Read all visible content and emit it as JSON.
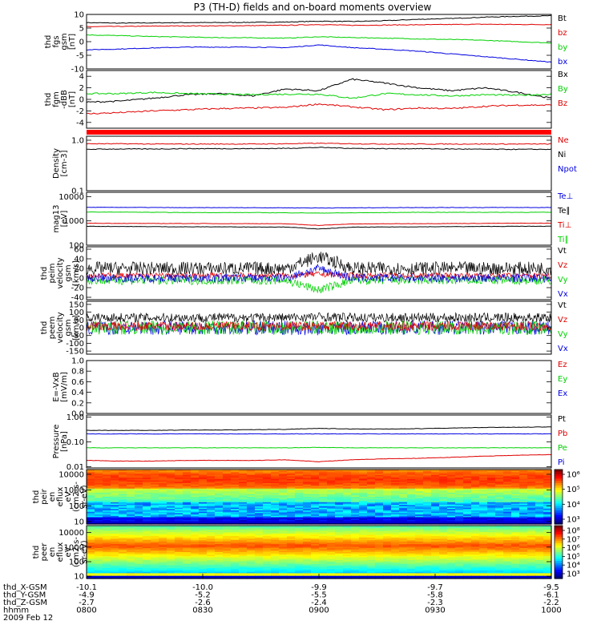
{
  "chart_data": {
    "type": "line",
    "title": "P3 (TH-D) fields and on-board moments overview",
    "colors": {
      "black": "#000000",
      "red": "#e00000",
      "green": "#00d000",
      "blue": "#0000e0"
    },
    "panels": [
      {
        "ylabel": [
          "thd",
          "fgs",
          "gsm",
          "[nT]"
        ],
        "scale": "linear",
        "ylim": [
          -10,
          10
        ],
        "ticks": [
          "10",
          "5",
          "0",
          "-5",
          "-10"
        ],
        "tickvals": [
          10,
          5,
          0,
          -5,
          -10
        ],
        "legend": [
          "Bt",
          "bz",
          "by",
          "bx"
        ],
        "series": [
          {
            "name": "Bt",
            "color": "#000000",
            "values": [
              7.0,
              6.8,
              6.9,
              7.0,
              7.0,
              7.1,
              7.2,
              7.5,
              7.4,
              7.7,
              8.2,
              8.5,
              9.0,
              9.3,
              9.5
            ]
          },
          {
            "name": "bz",
            "color": "#e00000",
            "values": [
              5.5,
              5.6,
              5.7,
              5.8,
              5.8,
              5.9,
              6.0,
              6.3,
              6.0,
              6.1,
              6.2,
              6.3,
              6.4,
              6.3,
              6.3
            ]
          },
          {
            "name": "by",
            "color": "#00d000",
            "values": [
              2.5,
              2.2,
              1.9,
              1.7,
              1.5,
              1.4,
              1.3,
              1.8,
              1.5,
              1.3,
              1.0,
              0.8,
              0.5,
              0.0,
              -0.5
            ]
          },
          {
            "name": "bx",
            "color": "#0000e0",
            "values": [
              -3.0,
              -2.7,
              -2.3,
              -2.0,
              -2.0,
              -2.0,
              -2.2,
              -1.2,
              -2.2,
              -2.8,
              -3.5,
              -4.5,
              -5.5,
              -6.5,
              -7.5
            ]
          }
        ]
      },
      {
        "ylabel": [
          "thd",
          "fgm",
          "-dBB",
          "[nT]"
        ],
        "scale": "linear",
        "ylim": [
          -5,
          5
        ],
        "ticks": [
          "4",
          "2",
          "0",
          "-2",
          "-4"
        ],
        "tickvals": [
          4,
          2,
          0,
          -2,
          -4
        ],
        "legend": [
          "Bx",
          "By",
          "Bz"
        ],
        "series": [
          {
            "name": "Bx",
            "color": "#000000",
            "values": [
              -0.5,
              -0.3,
              0.2,
              0.8,
              1.0,
              0.6,
              1.8,
              1.5,
              3.5,
              2.8,
              2.0,
              1.5,
              2.0,
              1.2,
              0.2
            ]
          },
          {
            "name": "By",
            "color": "#00d000",
            "values": [
              1.0,
              1.0,
              1.2,
              1.0,
              0.9,
              0.8,
              0.9,
              0.9,
              0.2,
              1.0,
              0.8,
              0.6,
              0.8,
              0.7,
              0.9
            ]
          },
          {
            "name": "Bz",
            "color": "#e00000",
            "values": [
              -2.5,
              -2.3,
              -2.0,
              -1.8,
              -1.6,
              -1.5,
              -1.4,
              -0.8,
              -1.3,
              -1.8,
              -1.5,
              -1.6,
              -1.2,
              -1.0,
              -1.0
            ]
          }
        ]
      },
      {
        "ylabel": [
          "Density",
          "[cm-3]"
        ],
        "scale": "log",
        "ylim": [
          0.1,
          1.2
        ],
        "ticks": [
          "1.0",
          "0.1"
        ],
        "tickvals": [
          1.0,
          0.1
        ],
        "legend": [
          "Ne",
          "Ni",
          "Npot"
        ],
        "series": [
          {
            "name": "Ne",
            "color": "#e00000",
            "values": [
              0.85,
              0.85,
              0.84,
              0.84,
              0.84,
              0.84,
              0.85,
              0.87,
              0.85,
              0.84,
              0.84,
              0.84,
              0.84,
              0.84,
              0.84
            ]
          },
          {
            "name": "Ni",
            "color": "#000000",
            "values": [
              0.66,
              0.67,
              0.67,
              0.68,
              0.68,
              0.68,
              0.69,
              0.72,
              0.69,
              0.68,
              0.68,
              0.67,
              0.66,
              0.66,
              0.66
            ]
          }
        ]
      },
      {
        "ylabel": [
          "mag13",
          "[eV]"
        ],
        "scale": "log",
        "ylim": [
          100,
          15000
        ],
        "ticks": [
          "10000",
          "1000",
          "100"
        ],
        "tickvals": [
          10000,
          1000,
          100
        ],
        "legend": [
          "Te⊥",
          "Te∥",
          "Ti⊥",
          "Ti∥"
        ],
        "series": [
          {
            "name": "Te⊥",
            "color": "#0000e0",
            "values": [
              3600,
              3600,
              3550,
              3500,
              3500,
              3500,
              3450,
              3400,
              3450,
              3500,
              3550,
              3550,
              3550,
              3550,
              3550
            ]
          },
          {
            "name": "Ti∥",
            "color": "#00d000",
            "values": [
              2300,
              2300,
              2250,
              2200,
              2200,
              2200,
              2150,
              2100,
              2150,
              2200,
              2250,
              2250,
              2250,
              2250,
              2250
            ]
          },
          {
            "name": "Ti⊥",
            "color": "#e00000",
            "values": [
              800,
              790,
              780,
              780,
              770,
              770,
              760,
              650,
              750,
              760,
              770,
              780,
              790,
              800,
              800
            ]
          },
          {
            "name": "Te∥",
            "color": "#000000",
            "values": [
              600,
              590,
              580,
              570,
              570,
              560,
              560,
              460,
              550,
              560,
              570,
              580,
              590,
              600,
              600
            ]
          }
        ]
      },
      {
        "ylabel": [
          "thd",
          "peim",
          "velocity",
          "gsm",
          "[km/s]"
        ],
        "scale": "linear",
        "ylim": [
          -45,
          65
        ],
        "ticks": [
          "60",
          "40",
          "20",
          "0",
          "-20",
          "-40"
        ],
        "tickvals": [
          60,
          40,
          20,
          0,
          -20,
          -40
        ],
        "legend": [
          "Vt",
          "Vz",
          "Vy",
          "Vx"
        ],
        "noisy": true,
        "series": [
          {
            "name": "Vt",
            "color": "#000000",
            "values": [
              20,
              20,
              20,
              20,
              20,
              20,
              20,
              45,
              20,
              20,
              20,
              20,
              20,
              20,
              20
            ],
            "noise": 14
          },
          {
            "name": "Vz",
            "color": "#e00000",
            "values": [
              5,
              5,
              5,
              5,
              5,
              5,
              5,
              8,
              5,
              5,
              5,
              5,
              5,
              5,
              5
            ],
            "noise": 6
          },
          {
            "name": "Vy",
            "color": "#00d000",
            "values": [
              -5,
              -5,
              -5,
              -5,
              -5,
              -5,
              -5,
              -25,
              -5,
              -5,
              -5,
              -5,
              -5,
              -5,
              -5
            ],
            "noise": 9
          },
          {
            "name": "Vx",
            "color": "#0000e0",
            "values": [
              0,
              0,
              0,
              0,
              0,
              0,
              0,
              20,
              0,
              0,
              0,
              0,
              0,
              0,
              0
            ],
            "noise": 9
          }
        ]
      },
      {
        "ylabel": [
          "thd",
          "peem",
          "velocity",
          "gsm",
          "[km/s]"
        ],
        "scale": "linear",
        "ylim": [
          -170,
          170
        ],
        "ticks": [
          "150",
          "100",
          "50",
          "0",
          "-50",
          "-100",
          "-150"
        ],
        "tickvals": [
          150,
          100,
          50,
          0,
          -50,
          -100,
          -150
        ],
        "legend": [
          "Vt",
          "Vz",
          "Vy",
          "Vx"
        ],
        "noisy": true,
        "series": [
          {
            "name": "Vt",
            "color": "#000000",
            "values": [
              65,
              65,
              65,
              65,
              65,
              65,
              65,
              70,
              65,
              65,
              65,
              65,
              65,
              65,
              65
            ],
            "noise": 30
          },
          {
            "name": "Vx",
            "color": "#0000e0",
            "values": [
              0,
              0,
              0,
              0,
              0,
              0,
              0,
              -10,
              0,
              0,
              0,
              0,
              0,
              0,
              0
            ],
            "noise": 45
          },
          {
            "name": "Vy",
            "color": "#00d000",
            "values": [
              0,
              0,
              0,
              0,
              0,
              0,
              0,
              0,
              0,
              0,
              0,
              0,
              0,
              0,
              0
            ],
            "noise": 45
          },
          {
            "name": "Vz",
            "color": "#e00000",
            "values": [
              10,
              10,
              10,
              10,
              10,
              10,
              10,
              10,
              10,
              10,
              10,
              10,
              10,
              10,
              10
            ],
            "noise": 30
          }
        ]
      },
      {
        "ylabel": [
          "E=-VxB",
          "[mV/m]"
        ],
        "scale": "linear",
        "ylim": [
          0,
          1
        ],
        "ticks": [
          "1.0",
          "0.8",
          "0.6",
          "0.4",
          "0.2",
          "0.0"
        ],
        "tickvals": [
          1.0,
          0.8,
          0.6,
          0.4,
          0.2,
          0.0
        ],
        "legend": [
          "Ez",
          "Ey",
          "Ex"
        ],
        "series": []
      },
      {
        "ylabel": [
          "Pressure",
          "[nPa]"
        ],
        "scale": "log",
        "ylim": [
          0.009,
          1.2
        ],
        "ticks": [
          "1.00",
          "0.10",
          "0.01"
        ],
        "tickvals": [
          1.0,
          0.1,
          0.01
        ],
        "legend": [
          "Pt",
          "Pb",
          "Pe",
          "Pi"
        ],
        "series": [
          {
            "name": "Pt",
            "color": "#000000",
            "values": [
              0.29,
              0.29,
              0.29,
              0.3,
              0.3,
              0.31,
              0.32,
              0.35,
              0.33,
              0.33,
              0.34,
              0.36,
              0.38,
              0.39,
              0.4
            ]
          },
          {
            "name": "Pi",
            "color": "#0000e0",
            "values": [
              0.21,
              0.21,
              0.21,
              0.21,
              0.21,
              0.21,
              0.21,
              0.21,
              0.21,
              0.21,
              0.21,
              0.21,
              0.21,
              0.21,
              0.21
            ]
          },
          {
            "name": "Pe",
            "color": "#00d000",
            "values": [
              0.058,
              0.058,
              0.058,
              0.058,
              0.058,
              0.058,
              0.058,
              0.06,
              0.058,
              0.058,
              0.058,
              0.058,
              0.058,
              0.058,
              0.058
            ]
          },
          {
            "name": "Pb",
            "color": "#e00000",
            "values": [
              0.018,
              0.017,
              0.017,
              0.018,
              0.018,
              0.018,
              0.019,
              0.016,
              0.019,
              0.021,
              0.022,
              0.024,
              0.027,
              0.029,
              0.031
            ]
          }
        ]
      },
      {
        "type": "heatmap",
        "ylabel": [
          "thd",
          "peir",
          "en",
          "eflux",
          "eV",
          "(cm2-s-",
          "sr-eV)"
        ],
        "scale": "log",
        "ylim": [
          7,
          20000
        ],
        "ticks": [
          "10000",
          "1000",
          "100",
          "10"
        ],
        "tickvals": [
          10000,
          1000,
          100,
          10
        ],
        "colorbar": {
          "ticks": [
            "10⁶",
            "10⁵",
            "10⁴",
            "10³"
          ],
          "range": [
            1000,
            1000000
          ]
        }
      },
      {
        "type": "heatmap",
        "ylabel": [
          "thd",
          "peer",
          "en",
          "eflux",
          "eV",
          "(cm2-s-",
          "sr-eV)"
        ],
        "scale": "log",
        "ylim": [
          7,
          30000
        ],
        "ticks": [
          "10000",
          "1000",
          "100",
          "10"
        ],
        "tickvals": [
          10000,
          1000,
          100,
          10
        ],
        "colorbar": {
          "ticks": [
            "10⁸",
            "10⁷",
            "10⁶",
            "10⁵",
            "10⁴",
            "10³"
          ],
          "range": [
            1000,
            100000000
          ]
        }
      }
    ],
    "xaxis": {
      "rows": [
        {
          "label": "thd_X-GSM",
          "values": [
            "-10.1",
            "-10.0",
            "-9.9",
            "-9.7",
            "-9.5"
          ]
        },
        {
          "label": "thd_Y-GSM",
          "values": [
            "-4.9",
            "-5.2",
            "-5.5",
            "-5.8",
            "-6.1"
          ]
        },
        {
          "label": "thd_Z-GSM",
          "values": [
            "-2.7",
            "-2.6",
            "-2.4",
            "-2.3",
            "-2.2"
          ]
        },
        {
          "label": "hhmm",
          "values": [
            "0800",
            "0830",
            "0900",
            "0930",
            "1000"
          ]
        }
      ],
      "date": "2009 Feb 12"
    }
  }
}
